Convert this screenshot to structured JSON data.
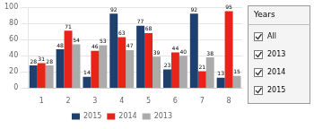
{
  "chart_data": {
    "type": "bar",
    "categories": [
      "1",
      "2",
      "3",
      "4",
      "5",
      "6",
      "7",
      "8"
    ],
    "series": [
      {
        "name": "2015",
        "color": "#1F3F6E",
        "values": [
          28,
          48,
          14,
          92,
          77,
          23,
          92,
          13
        ]
      },
      {
        "name": "2014",
        "color": "#E8241A",
        "values": [
          31,
          71,
          46,
          63,
          68,
          44,
          21,
          95
        ]
      },
      {
        "name": "2013",
        "color": "#ABABAB",
        "values": [
          28,
          54,
          53,
          47,
          39,
          40,
          38,
          15
        ]
      }
    ],
    "ylim": [
      0,
      100
    ],
    "yticks": [
      0,
      20,
      40,
      60,
      80,
      100
    ],
    "grid": true,
    "legend": "bottom",
    "data_labels": true,
    "annotations": [
      "Years",
      "All",
      "2013",
      "2014",
      "2015"
    ]
  }
}
